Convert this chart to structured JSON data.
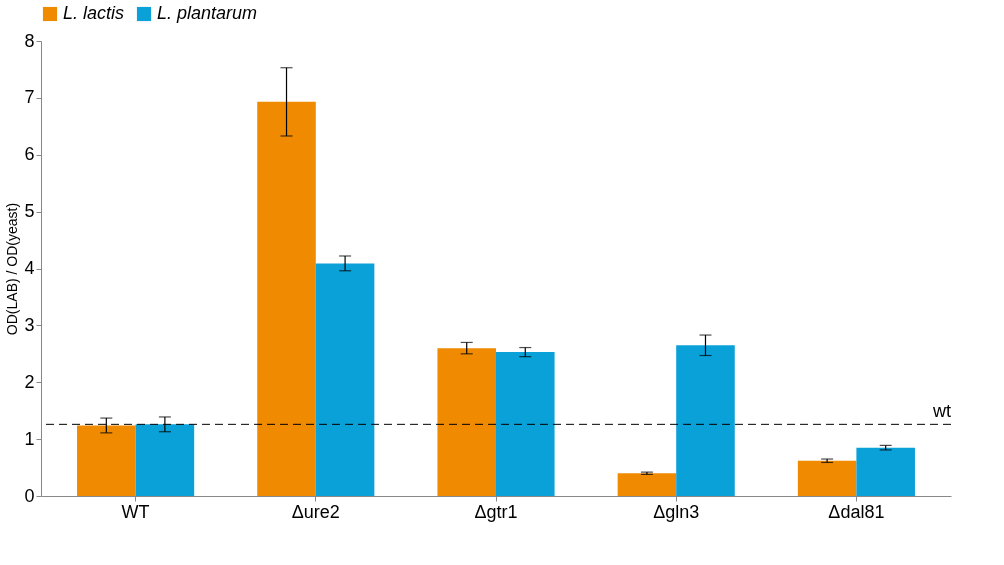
{
  "chart_data": {
    "type": "bar",
    "ylabel": "OD(LAB) / OD(yeast)",
    "categories": [
      "WT",
      "Δure2",
      "Δgtr1",
      "Δgln3",
      "Δdal81"
    ],
    "series": [
      {
        "name": "L. lactis",
        "color": "#f08a00",
        "values": [
          1.24,
          6.93,
          2.6,
          0.4,
          0.62
        ],
        "errors": [
          0.13,
          0.6,
          0.1,
          0.02,
          0.03
        ]
      },
      {
        "name": "L. plantarum",
        "color": "#0aa0d8",
        "values": [
          1.26,
          4.09,
          2.53,
          2.65,
          0.85
        ],
        "errors": [
          0.13,
          0.13,
          0.08,
          0.18,
          0.04
        ]
      }
    ],
    "ylim": [
      0,
      8
    ],
    "yticks": [
      0,
      1,
      2,
      3,
      4,
      5,
      6,
      7,
      8
    ],
    "grid": false,
    "legend": "top",
    "ref_lines": [
      {
        "axis": "y",
        "value": 1.26,
        "label": "wt",
        "line_style": "dashed",
        "color": "#000000"
      }
    ]
  }
}
